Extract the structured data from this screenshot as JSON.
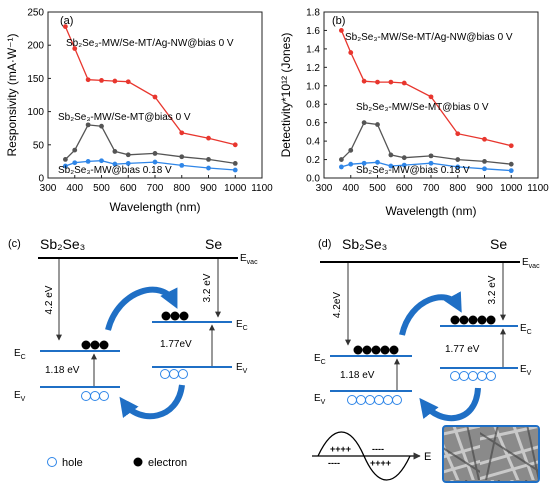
{
  "chart_data": [
    {
      "type": "line",
      "panel_label": "(a)",
      "xlabel": "Wavelength (nm)",
      "ylabel": "Responsivity (mA·W⁻¹)",
      "xlim": [
        300,
        1100
      ],
      "ylim": [
        0,
        250
      ],
      "xticks": [
        "300",
        "400",
        "500",
        "600",
        "700",
        "800",
        "900",
        "1000",
        "1100"
      ],
      "yticks": [
        "0",
        "50",
        "100",
        "150",
        "200",
        "250"
      ],
      "series": [
        {
          "name": "Sb₂Se₃-MW/Se-MT/Ag-NW@bias 0 V",
          "color": "#e8362e",
          "x": [
            365,
            400,
            450,
            500,
            550,
            600,
            700,
            800,
            900,
            1000
          ],
          "y": [
            228,
            195,
            148,
            147,
            146,
            145,
            122,
            68,
            60,
            50
          ]
        },
        {
          "name": "Sb₂Se₃-MW/Se-MT@bias 0 V",
          "color": "#555555",
          "x": [
            365,
            400,
            450,
            500,
            550,
            600,
            700,
            800,
            900,
            1000
          ],
          "y": [
            28,
            42,
            80,
            78,
            40,
            35,
            37,
            32,
            28,
            22
          ]
        },
        {
          "name": "Sb₂Se₃-MW@bias 0.18 V",
          "color": "#2f86e8",
          "x": [
            365,
            400,
            450,
            500,
            550,
            600,
            700,
            800,
            900,
            1000
          ],
          "y": [
            18,
            23,
            25,
            26,
            21,
            22,
            24,
            19,
            15,
            12
          ]
        }
      ]
    },
    {
      "type": "line",
      "panel_label": "(b)",
      "xlabel": "Wavelength (nm)",
      "ylabel": "Detectivity*10¹² (Jones)",
      "xlim": [
        300,
        1100
      ],
      "ylim": [
        0.0,
        1.8
      ],
      "xticks": [
        "300",
        "400",
        "500",
        "600",
        "700",
        "800",
        "900",
        "1000",
        "1100"
      ],
      "yticks": [
        "0.0",
        "0.2",
        "0.4",
        "0.6",
        "0.8",
        "1.0",
        "1.2",
        "1.4",
        "1.6",
        "1.8"
      ],
      "series": [
        {
          "name": "Sb₂Se₃-MW/Se-MT/Ag-NW@bias 0 V",
          "color": "#e8362e",
          "x": [
            365,
            400,
            450,
            500,
            550,
            600,
            700,
            800,
            900,
            1000
          ],
          "y": [
            1.6,
            1.36,
            1.05,
            1.04,
            1.04,
            1.03,
            0.88,
            0.48,
            0.42,
            0.35
          ]
        },
        {
          "name": "Sb₂Se₃-MW/Se-MT@bias 0 V",
          "color": "#555555",
          "x": [
            365,
            400,
            450,
            500,
            550,
            600,
            700,
            800,
            900,
            1000
          ],
          "y": [
            0.2,
            0.3,
            0.6,
            0.58,
            0.25,
            0.22,
            0.24,
            0.2,
            0.18,
            0.15
          ]
        },
        {
          "name": "Sb₂Se₃-MW@bias 0.18 V",
          "color": "#2f86e8",
          "x": [
            365,
            400,
            450,
            500,
            550,
            600,
            700,
            800,
            900,
            1000
          ],
          "y": [
            0.12,
            0.15,
            0.16,
            0.17,
            0.13,
            0.14,
            0.16,
            0.12,
            0.1,
            0.08
          ]
        }
      ]
    }
  ],
  "diagram_c": {
    "panel_label": "(c)",
    "left_material": "Sb₂Se₃",
    "right_material": "Se",
    "evac_label": "E",
    "evac_sub": "vac",
    "ec_label": "E",
    "ec_sub": "C",
    "ev_label": "E",
    "ev_sub": "V",
    "left_affinity": "4.2 eV",
    "right_affinity": "3.2 eV",
    "left_gap": "1.18 eV",
    "right_gap": "1.77eV",
    "legend_hole": "hole",
    "legend_electron": "electron"
  },
  "diagram_d": {
    "panel_label": "(d)",
    "left_material": "Sb₂Se₃",
    "right_material": "Se",
    "evac_label": "E",
    "evac_sub": "vac",
    "ec_label": "E",
    "ec_sub": "C",
    "ev_label": "E",
    "ev_sub": "V",
    "left_affinity": "4.2eV",
    "right_affinity": "3.2 eV",
    "left_gap": "1.18 eV",
    "right_gap": "1.77 eV",
    "field_label": "E",
    "colors": {
      "arrow": "#1f6fc5",
      "hole": "#2f86e8",
      "electron": "#000000",
      "sem_frame": "#1f6fc5"
    }
  }
}
